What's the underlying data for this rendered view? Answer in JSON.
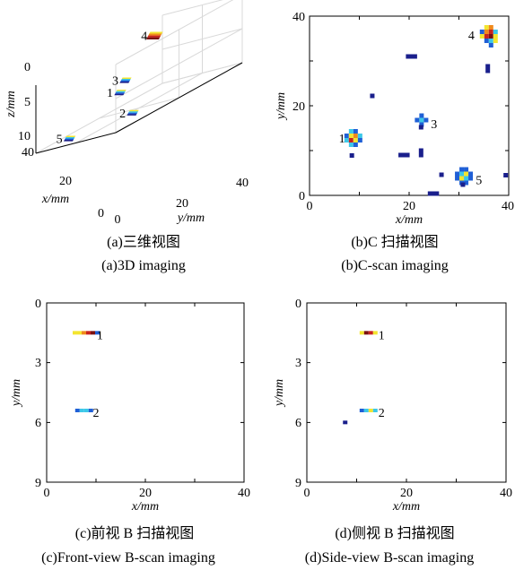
{
  "chart_data": [
    {
      "type": "scatter",
      "panel": "a",
      "view": "3d",
      "xlabel": "x/mm",
      "ylabel": "y/mm",
      "zlabel": "z/mm",
      "xlim": [
        0,
        40
      ],
      "ylim": [
        0,
        40
      ],
      "zlim": [
        0,
        10
      ],
      "x_ticks": [
        "0",
        "20",
        "40"
      ],
      "y_ticks": [
        "0",
        "20",
        "40"
      ],
      "z_ticks": [
        "0",
        "5",
        "10"
      ],
      "grid": true,
      "points": [
        {
          "label": "1",
          "x": 12,
          "y": 9,
          "z": 5.5
        },
        {
          "label": "2",
          "x": 12,
          "y": 13,
          "z": 9.5
        },
        {
          "label": "3",
          "x": 22,
          "y": 17,
          "z": 5.0
        },
        {
          "label": "4",
          "x": 36,
          "y": 35,
          "z": 2.0
        },
        {
          "label": "5",
          "x": 31,
          "y": 5,
          "z": 9.8
        }
      ],
      "caption_cn": "(a)三维视图",
      "caption_en": "(a)3D imaging"
    },
    {
      "type": "heatmap",
      "panel": "b",
      "xlabel": "x/mm",
      "ylabel": "y/mm",
      "xlim": [
        0,
        40
      ],
      "ylim": [
        0,
        40
      ],
      "x_ticks": [
        "0",
        "20",
        "40"
      ],
      "y_ticks": [
        "0",
        "20",
        "40"
      ],
      "annotations": [
        {
          "text": "1",
          "x": 6.5,
          "y": 12.8
        },
        {
          "text": "3",
          "x": 25.0,
          "y": 16.0
        },
        {
          "text": "4",
          "x": 32.5,
          "y": 35.8
        },
        {
          "text": "5",
          "x": 34.0,
          "y": 3.5
        }
      ],
      "caption_cn": "(b)C 扫描视图",
      "caption_en": "(b)C-scan imaging"
    },
    {
      "type": "heatmap",
      "panel": "c",
      "xlabel": "x/mm",
      "ylabel": "y/mm",
      "xlim": [
        0,
        40
      ],
      "ylim": [
        0,
        9
      ],
      "y_reversed": true,
      "x_ticks": [
        "0",
        "20",
        "40"
      ],
      "y_ticks": [
        "0",
        "3",
        "6",
        "9"
      ],
      "annotations": [
        {
          "text": "1",
          "x": 10.8,
          "y": 1.6
        },
        {
          "text": "2",
          "x": 10.0,
          "y": 5.5
        }
      ],
      "caption_cn": "(c)前视 B 扫描视图",
      "caption_en": "(c)Front-view B-scan imaging"
    },
    {
      "type": "heatmap",
      "panel": "d",
      "xlabel": "x/mm",
      "ylabel": "y/mm",
      "xlim": [
        0,
        40
      ],
      "ylim": [
        0,
        9
      ],
      "y_reversed": true,
      "x_ticks": [
        "0",
        "20",
        "40"
      ],
      "y_ticks": [
        "0",
        "3",
        "6",
        "9"
      ],
      "annotations": [
        {
          "text": "1",
          "x": 15.0,
          "y": 1.6
        },
        {
          "text": "2",
          "x": 15.0,
          "y": 5.5
        }
      ],
      "caption_cn": "(d)侧视 B 扫描视图",
      "caption_en": "(d)Side-view B-scan imaging"
    }
  ],
  "colors": {
    "dark_blue": "#1a1f8c",
    "blue": "#1f5fd6",
    "cyan": "#3cc8e8",
    "yellow": "#f3e530",
    "orange": "#f08a1c",
    "red": "#c8231e",
    "dark_red": "#7a1010",
    "grid": "#d9d9d9",
    "axis": "#000000"
  }
}
